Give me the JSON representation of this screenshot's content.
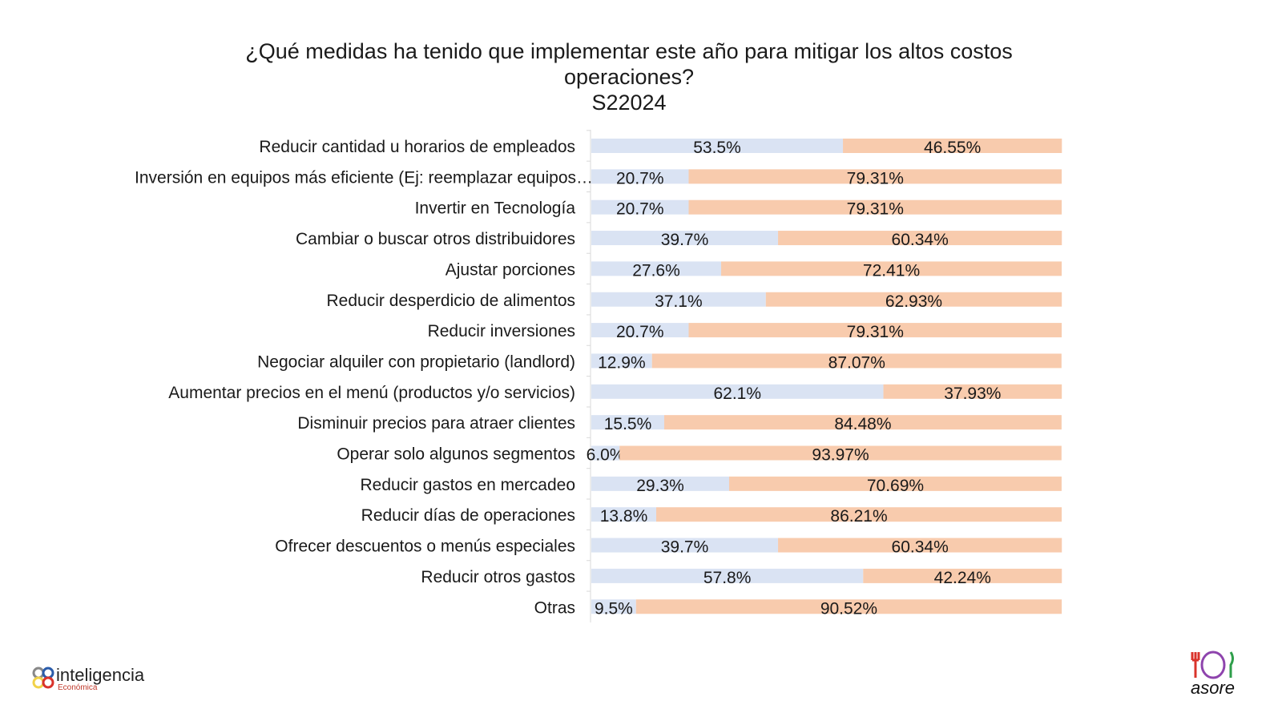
{
  "chart_data": {
    "type": "bar",
    "orientation": "horizontal",
    "stacked": "100%",
    "title_lines": [
      "¿Qué medidas ha tenido que implementar este año para mitigar los altos costos",
      "operaciones?",
      "S22024"
    ],
    "categories": [
      "Reducir cantidad u horarios de empleados",
      "Inversión en equipos más eficiente (Ej: reemplazar equipos…",
      "Invertir en Tecnología",
      "Cambiar o buscar otros distribuidores",
      "Ajustar porciones",
      "Reducir desperdicio de alimentos",
      "Reducir inversiones",
      "Negociar alquiler con propietario (landlord)",
      "Aumentar precios en el menú (productos y/o servicios)",
      "Disminuir precios para atraer clientes",
      "Operar solo algunos segmentos",
      "Reducir gastos en mercadeo",
      "Reducir días de operaciones",
      "Ofrecer descuentos o menús especiales",
      "Reducir otros gastos",
      "Otras"
    ],
    "series": [
      {
        "color": "#dae3f3",
        "values": [
          53.5,
          20.7,
          20.7,
          39.7,
          27.6,
          37.1,
          20.7,
          12.9,
          62.1,
          15.5,
          6.0,
          29.3,
          13.8,
          39.7,
          57.8,
          9.5
        ],
        "labels": [
          "53.5%",
          "20.7%",
          "20.7%",
          "39.7%",
          "27.6%",
          "37.1%",
          "20.7%",
          "12.9%",
          "62.1%",
          "15.5%",
          "6.0%",
          "29.3%",
          "13.8%",
          "39.7%",
          "57.8%",
          "9.5%"
        ]
      },
      {
        "color": "#f8cbad",
        "values": [
          46.55,
          79.31,
          79.31,
          60.34,
          72.41,
          62.93,
          79.31,
          87.07,
          37.93,
          84.48,
          93.97,
          70.69,
          86.21,
          60.34,
          42.24,
          90.52
        ],
        "labels": [
          "46.55%",
          "79.31%",
          "79.31%",
          "60.34%",
          "72.41%",
          "62.93%",
          "79.31%",
          "87.07%",
          "37.93%",
          "84.48%",
          "93.97%",
          "70.69%",
          "86.21%",
          "60.34%",
          "42.24%",
          "90.52%"
        ]
      }
    ],
    "xlim": [
      0,
      100
    ],
    "grid": false,
    "legend": "none"
  },
  "logos": {
    "left": {
      "main": "inteligencia",
      "sub": "Económica"
    },
    "right": {
      "main": "asore"
    }
  }
}
